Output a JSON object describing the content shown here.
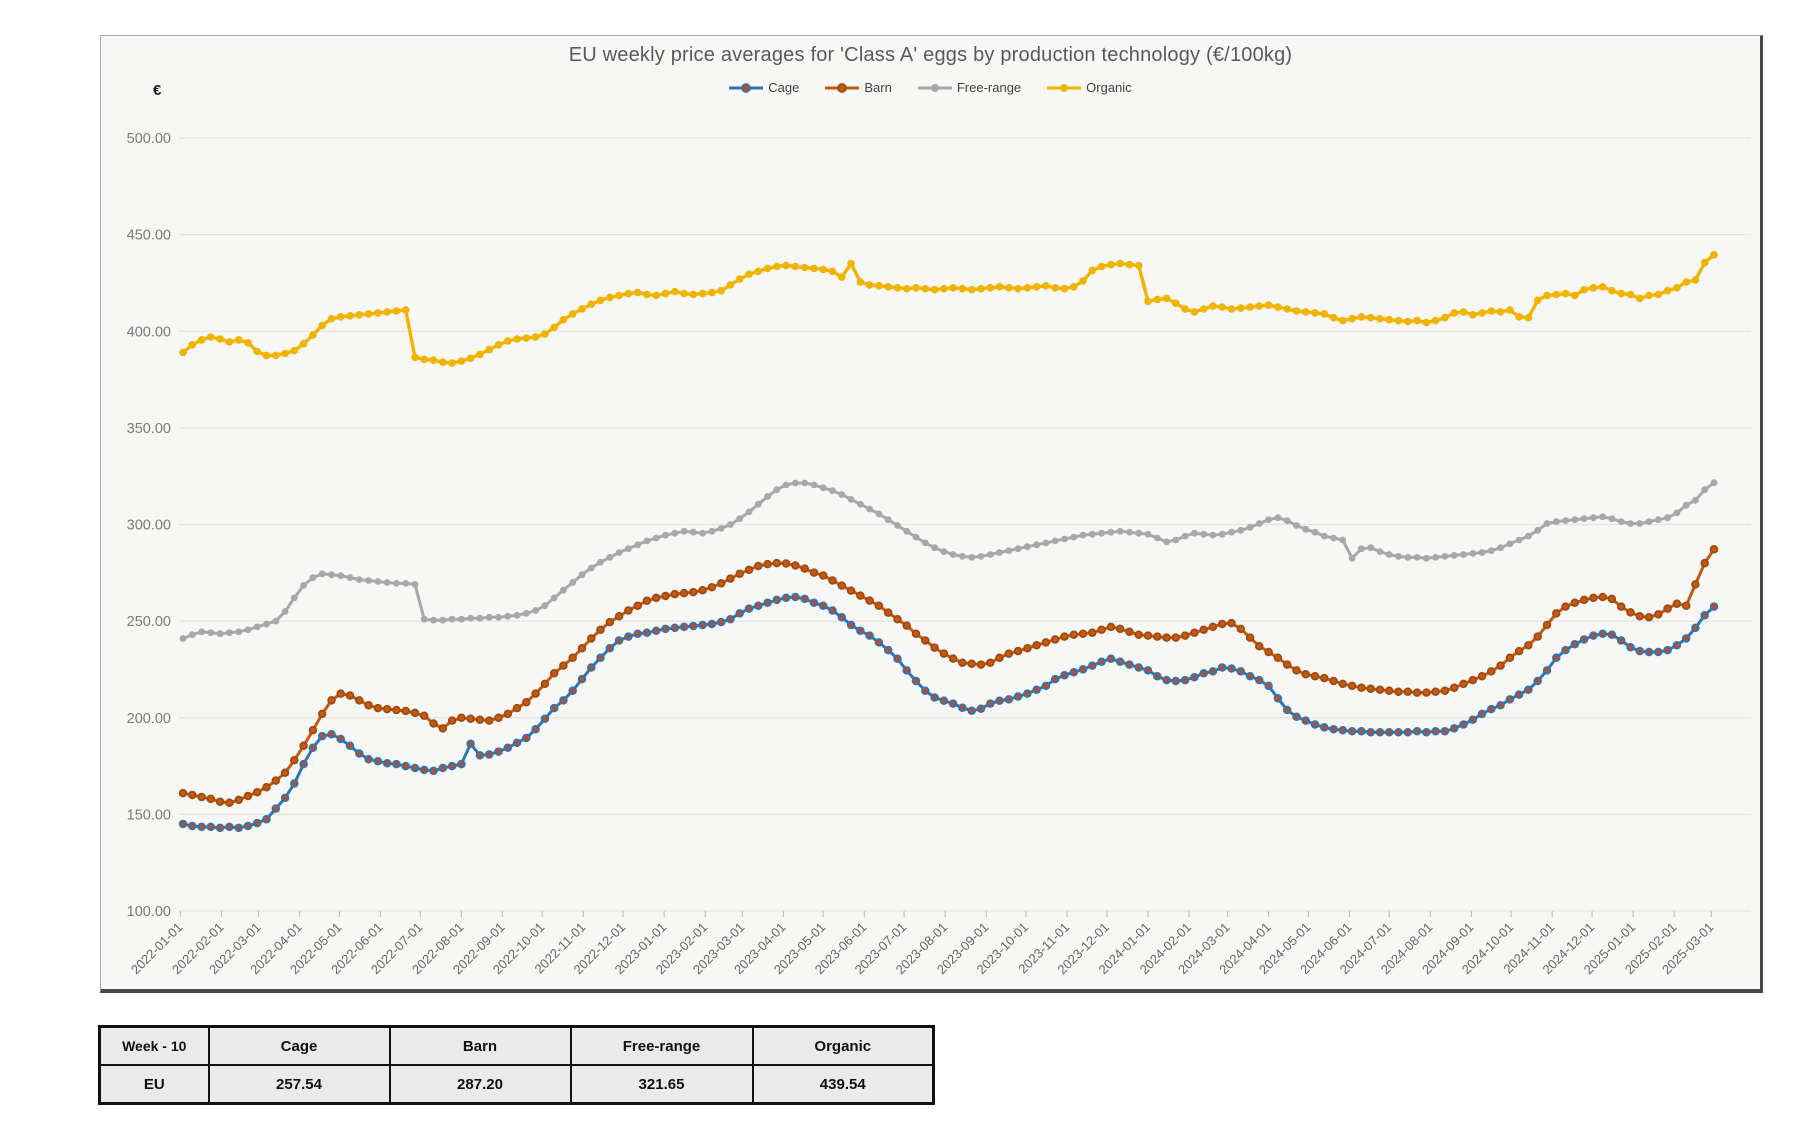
{
  "title": "EU weekly price averages for 'Class A' eggs by production technology (€/100kg)",
  "currency_symbol": "€",
  "chart_data": {
    "type": "line",
    "title": "EU weekly price averages for 'Class A' eggs by production technology (€/100kg)",
    "ylabel": "€",
    "ylim": [
      100,
      500
    ],
    "grid": true,
    "legend_position": "top",
    "x_start_date": "2022-01-03",
    "x_interval_days": 7,
    "num_points": 166,
    "y_tick_labels": [
      "100.00",
      "150.00",
      "200.00",
      "250.00",
      "300.00",
      "350.00",
      "400.00",
      "450.00",
      "500.00"
    ],
    "x_tick_labels": [
      "2022-01-01",
      "2022-02-01",
      "2022-03-01",
      "2022-04-01",
      "2022-05-01",
      "2022-06-01",
      "2022-07-01",
      "2022-08-01",
      "2022-09-01",
      "2022-10-01",
      "2022-11-01",
      "2022-12-01",
      "2023-01-01",
      "2023-02-01",
      "2023-03-01",
      "2023-04-01",
      "2023-05-01",
      "2023-06-01",
      "2023-07-01",
      "2023-08-01",
      "2023-09-01",
      "2023-10-01",
      "2023-11-01",
      "2023-12-01",
      "2024-01-01",
      "2024-02-01",
      "2024-03-01",
      "2024-04-01",
      "2024-05-01",
      "2024-06-01",
      "2024-07-01",
      "2024-08-01",
      "2024-09-01",
      "2024-10-01",
      "2024-11-01",
      "2024-12-01",
      "2025-01-01",
      "2025-02-01",
      "2025-03-01"
    ],
    "series": [
      {
        "name": "Cage",
        "color": "#2E75B6",
        "marker_fill": "#B5502A",
        "marker_stroke": "#2E75B6",
        "values": [
          145,
          144,
          143.5,
          143.5,
          143,
          143.5,
          143,
          144,
          145.5,
          147.5,
          153,
          158.5,
          166,
          176,
          184.5,
          190.5,
          191.5,
          189,
          185.5,
          181.5,
          178.5,
          177.5,
          176.5,
          176,
          175,
          174,
          173,
          172.5,
          174,
          175,
          176,
          186.5,
          180.5,
          181,
          182.5,
          184.5,
          187,
          189.5,
          194,
          199.5,
          205,
          209,
          214,
          220,
          226,
          231,
          236,
          240,
          242,
          243.5,
          244,
          245,
          246,
          246.5,
          247,
          247.5,
          248,
          248.5,
          249.5,
          251,
          254,
          256.5,
          258,
          259.5,
          261,
          262,
          262.5,
          261.5,
          259.5,
          258,
          255.5,
          252,
          248,
          245,
          242.5,
          239,
          235,
          230.5,
          224.5,
          219,
          214,
          210.5,
          208.8,
          207.3,
          205.2,
          203.6,
          204.7,
          207.3,
          208.8,
          209.5,
          211,
          212.5,
          214.5,
          216.5,
          220,
          222,
          223.5,
          225,
          227,
          229,
          230.5,
          229,
          227.5,
          226,
          224.5,
          221.5,
          219.5,
          219,
          219.5,
          221,
          223,
          224,
          226,
          225.5,
          224,
          221.5,
          219.5,
          216.5,
          210,
          204,
          200.5,
          198.5,
          196.5,
          195,
          194,
          193.5,
          193,
          193,
          192.5,
          192.5,
          192.5,
          192.5,
          192.5,
          193,
          192.5,
          193,
          193,
          194.5,
          196.5,
          199,
          202,
          204.5,
          206.5,
          209.5,
          212,
          214.5,
          219,
          224.5,
          231,
          235,
          238,
          240.5,
          242.5,
          243.5,
          243,
          240,
          236.5,
          234.5,
          234,
          234,
          235,
          237.5,
          241,
          246.5,
          253,
          257.54
        ]
      },
      {
        "name": "Barn",
        "color": "#C45911",
        "marker_fill": "#C45911",
        "marker_stroke": "#9E4A0F",
        "values": [
          161,
          160,
          159,
          158,
          156.5,
          156,
          157.5,
          159.5,
          161.5,
          164,
          167.5,
          171.5,
          178,
          185.5,
          193.5,
          202,
          209,
          212.5,
          211.5,
          209,
          206.5,
          205,
          204.5,
          204,
          203.5,
          202.5,
          201,
          197,
          194.5,
          198.5,
          200,
          199.5,
          199,
          198.5,
          200,
          202,
          205,
          208,
          212.5,
          217.5,
          223,
          227,
          231,
          236,
          241,
          245.5,
          249.5,
          252.5,
          255.5,
          258,
          260.5,
          262,
          263,
          264,
          264.5,
          265,
          266,
          267.5,
          269.5,
          272,
          274.5,
          276.5,
          278.5,
          279.5,
          280,
          279.8,
          278.8,
          277.2,
          275.1,
          273.6,
          271,
          268.4,
          265.8,
          263.2,
          260.6,
          258,
          254.4,
          251,
          247.7,
          243.5,
          240,
          236.3,
          233.2,
          230.6,
          228.5,
          227.9,
          227.5,
          228.5,
          231,
          233.2,
          234.5,
          236,
          237.5,
          239,
          240.5,
          242,
          243,
          243.5,
          244,
          245.5,
          247,
          246,
          244.5,
          243,
          242.5,
          242,
          241.5,
          241.5,
          242.5,
          244,
          245.5,
          247,
          248.5,
          249,
          246,
          241.5,
          237,
          234,
          231,
          227.5,
          224.5,
          222.5,
          221.5,
          220.5,
          219,
          217.5,
          216.5,
          215.5,
          215,
          214.5,
          214,
          213.5,
          213.5,
          213,
          213,
          213.5,
          214,
          215.5,
          217.5,
          219.5,
          221.5,
          224,
          227,
          231,
          234.5,
          237.5,
          242,
          248,
          254,
          257.5,
          259.5,
          261,
          262,
          262.5,
          261.5,
          257.5,
          254.5,
          252.5,
          252,
          253.5,
          256.5,
          259,
          258,
          269,
          280,
          287.2
        ]
      },
      {
        "name": "Free-range",
        "color": "#A8A8A8",
        "marker_fill": "#A8A8A8",
        "marker_stroke": "#A8A8A8",
        "values": [
          241,
          243,
          244.5,
          244,
          243.5,
          244,
          244.5,
          245.5,
          247,
          248.5,
          250,
          255,
          262,
          268.5,
          272.5,
          274.5,
          274,
          273.5,
          272.5,
          271.5,
          271,
          270.5,
          270,
          269.5,
          269.5,
          269,
          251,
          250.5,
          250.5,
          251,
          251,
          251.5,
          251.5,
          252,
          252,
          252.5,
          253,
          254,
          255.5,
          258,
          262,
          266,
          270,
          274,
          277.5,
          280.5,
          283,
          285.5,
          287.5,
          289.5,
          291.5,
          293,
          294.5,
          295.5,
          296.5,
          296,
          295.5,
          296.5,
          298,
          300,
          303,
          306.5,
          310.5,
          314.5,
          318,
          320.5,
          321.5,
          321.5,
          320.5,
          319,
          317.5,
          315.5,
          313,
          310.5,
          308,
          305.5,
          302.5,
          299.5,
          296.5,
          293.5,
          290.5,
          288,
          286,
          284.5,
          283.5,
          283,
          283.5,
          284.5,
          285.5,
          286.5,
          287.5,
          288.5,
          289.5,
          290.5,
          291.5,
          292.5,
          293.5,
          294.5,
          295,
          295.5,
          296,
          296.5,
          296,
          295.5,
          295,
          293,
          291,
          292,
          294,
          295.5,
          295,
          294.5,
          295,
          296,
          297,
          298.5,
          300.5,
          302.5,
          303.5,
          302,
          299.5,
          297.5,
          296,
          294,
          293,
          292,
          282.5,
          287.5,
          288,
          286,
          284.5,
          283.5,
          283,
          283,
          282.5,
          283,
          283.5,
          284,
          284.5,
          285,
          285.5,
          286.5,
          288,
          290,
          292,
          294,
          297,
          300.5,
          301.5,
          302,
          302.5,
          303,
          303.5,
          304,
          303,
          301.5,
          300.5,
          300.5,
          301.5,
          302.5,
          303.5,
          306,
          310,
          312.5,
          318,
          321.65
        ]
      },
      {
        "name": "Organic",
        "color": "#F0B400",
        "marker_fill": "#F0B400",
        "marker_stroke": "#F0B400",
        "values": [
          389,
          393,
          395.5,
          397,
          396,
          394.5,
          395.5,
          394,
          389.5,
          387.5,
          387.5,
          388.5,
          390,
          393.5,
          398,
          403,
          406.5,
          407.5,
          408,
          408.5,
          409,
          409.5,
          410,
          410.5,
          411,
          386.5,
          385.5,
          385,
          384,
          383.5,
          384.5,
          386,
          388,
          390.5,
          393,
          395,
          396,
          396.5,
          397,
          398.5,
          402,
          406,
          409,
          411.5,
          414,
          416,
          417.5,
          418.5,
          419.5,
          420,
          419,
          418.5,
          419.5,
          420.5,
          419.5,
          419,
          419.5,
          420,
          421,
          424,
          427,
          429.5,
          431,
          432.5,
          433.5,
          434,
          433.5,
          433,
          432.5,
          432,
          431,
          428,
          435,
          425.5,
          424,
          423.5,
          423,
          422.5,
          422,
          422.5,
          422,
          421.5,
          422,
          422.5,
          422,
          421.5,
          422,
          422.5,
          423,
          422.5,
          422,
          422.5,
          423,
          423.5,
          422.5,
          422,
          423,
          426,
          431.5,
          433.5,
          434.5,
          435,
          434.5,
          434,
          415.5,
          416.5,
          417,
          414.5,
          411.5,
          410,
          411.5,
          413,
          412.5,
          411.5,
          412,
          412.5,
          413,
          413.5,
          412.5,
          411.5,
          410.5,
          410,
          409.5,
          409,
          407,
          405.5,
          406.5,
          407.5,
          407,
          406.5,
          406,
          405.5,
          405,
          405.5,
          404.5,
          405.5,
          407,
          409.5,
          410,
          408.5,
          409.5,
          410.5,
          410,
          411,
          407.5,
          407,
          416,
          418.5,
          419,
          419.5,
          418.5,
          421.5,
          422.5,
          423,
          421,
          419.5,
          419,
          417,
          418.5,
          419,
          421,
          422.5,
          425.5,
          426.5,
          435.5,
          439.54
        ]
      }
    ]
  },
  "table": {
    "headers": [
      "Week - 10",
      "Cage",
      "Barn",
      "Free-range",
      "Organic"
    ],
    "rows": [
      [
        "EU",
        "257.54",
        "287.20",
        "321.65",
        "439.54"
      ]
    ]
  }
}
